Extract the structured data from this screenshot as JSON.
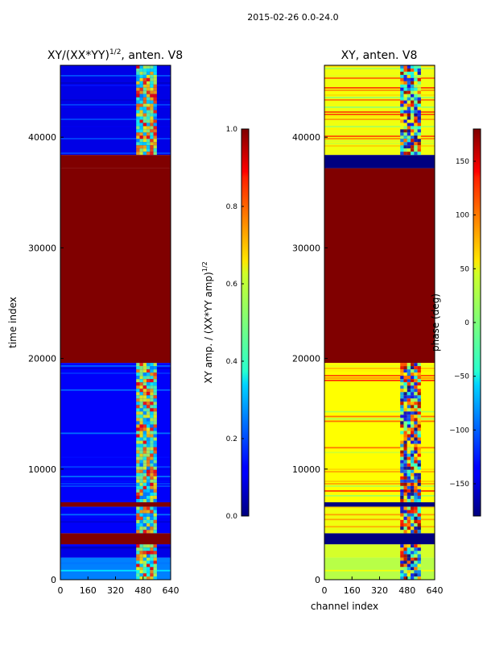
{
  "figure_title": "2015-02-26 0.0-24.0",
  "chart_data": [
    {
      "type": "heatmap",
      "title": "XY/(XX*YY)",
      "title_exponent": "1/2",
      "title_suffix": ", anten. V8",
      "xlabel": "",
      "ylabel": "time index",
      "xlim": [
        0,
        640
      ],
      "ylim": [
        0,
        46500
      ],
      "x_ticks": [
        0,
        160,
        320,
        480,
        640
      ],
      "y_ticks": [
        0,
        10000,
        20000,
        30000,
        40000
      ],
      "colorbar": {
        "label": "XY amp. / (XX*YY amp)",
        "label_exponent": "1/2",
        "range": [
          0.0,
          1.0
        ],
        "ticks": [
          "0.0",
          "0.2",
          "0.4",
          "0.6",
          "0.8",
          "1.0"
        ],
        "colormap": "jet"
      },
      "segments": [
        {
          "from": 0,
          "to": 2000,
          "value": 0.25,
          "pattern": "mixed"
        },
        {
          "from": 2000,
          "to": 3200,
          "value": 0.1,
          "pattern": "noisy"
        },
        {
          "from": 3200,
          "to": 4200,
          "value": 1.0,
          "pattern": "flat"
        },
        {
          "from": 4200,
          "to": 6600,
          "value": 0.12,
          "pattern": "striped"
        },
        {
          "from": 6600,
          "to": 7000,
          "value": 1.0,
          "pattern": "flat"
        },
        {
          "from": 7000,
          "to": 19600,
          "value": 0.12,
          "pattern": "noisy"
        },
        {
          "from": 19600,
          "to": 37200,
          "value": 1.0,
          "pattern": "flat"
        },
        {
          "from": 37200,
          "to": 38400,
          "value": 1.0,
          "pattern": "flat"
        },
        {
          "from": 38400,
          "to": 46500,
          "value": 0.1,
          "pattern": "striped"
        }
      ]
    },
    {
      "type": "heatmap",
      "title": "XY, anten. V8",
      "xlabel": "channel index",
      "ylabel": "",
      "xlim": [
        0,
        640
      ],
      "ylim": [
        0,
        46500
      ],
      "x_ticks": [
        0,
        160,
        320,
        480,
        640
      ],
      "y_ticks": [
        0,
        10000,
        20000,
        30000,
        40000
      ],
      "colorbar": {
        "label": "phase (deg)",
        "range": [
          -180,
          180
        ],
        "ticks": [
          "−150",
          "−100",
          "−50",
          "0",
          "50",
          "100",
          "150"
        ],
        "colormap": "jet"
      },
      "segments": [
        {
          "from": 0,
          "to": 2000,
          "value": 20,
          "pattern": "mixed"
        },
        {
          "from": 2000,
          "to": 3200,
          "value": 30,
          "pattern": "noisy"
        },
        {
          "from": 3200,
          "to": 4200,
          "value": -180,
          "pattern": "flat"
        },
        {
          "from": 4200,
          "to": 6600,
          "value": 40,
          "pattern": "striped"
        },
        {
          "from": 6600,
          "to": 7000,
          "value": -180,
          "pattern": "flat"
        },
        {
          "from": 7000,
          "to": 19600,
          "value": 45,
          "pattern": "noisy"
        },
        {
          "from": 19600,
          "to": 37200,
          "value": 180,
          "pattern": "flat"
        },
        {
          "from": 37200,
          "to": 38400,
          "value": -180,
          "pattern": "flat"
        },
        {
          "from": 38400,
          "to": 46500,
          "value": 40,
          "pattern": "striped"
        }
      ]
    }
  ]
}
